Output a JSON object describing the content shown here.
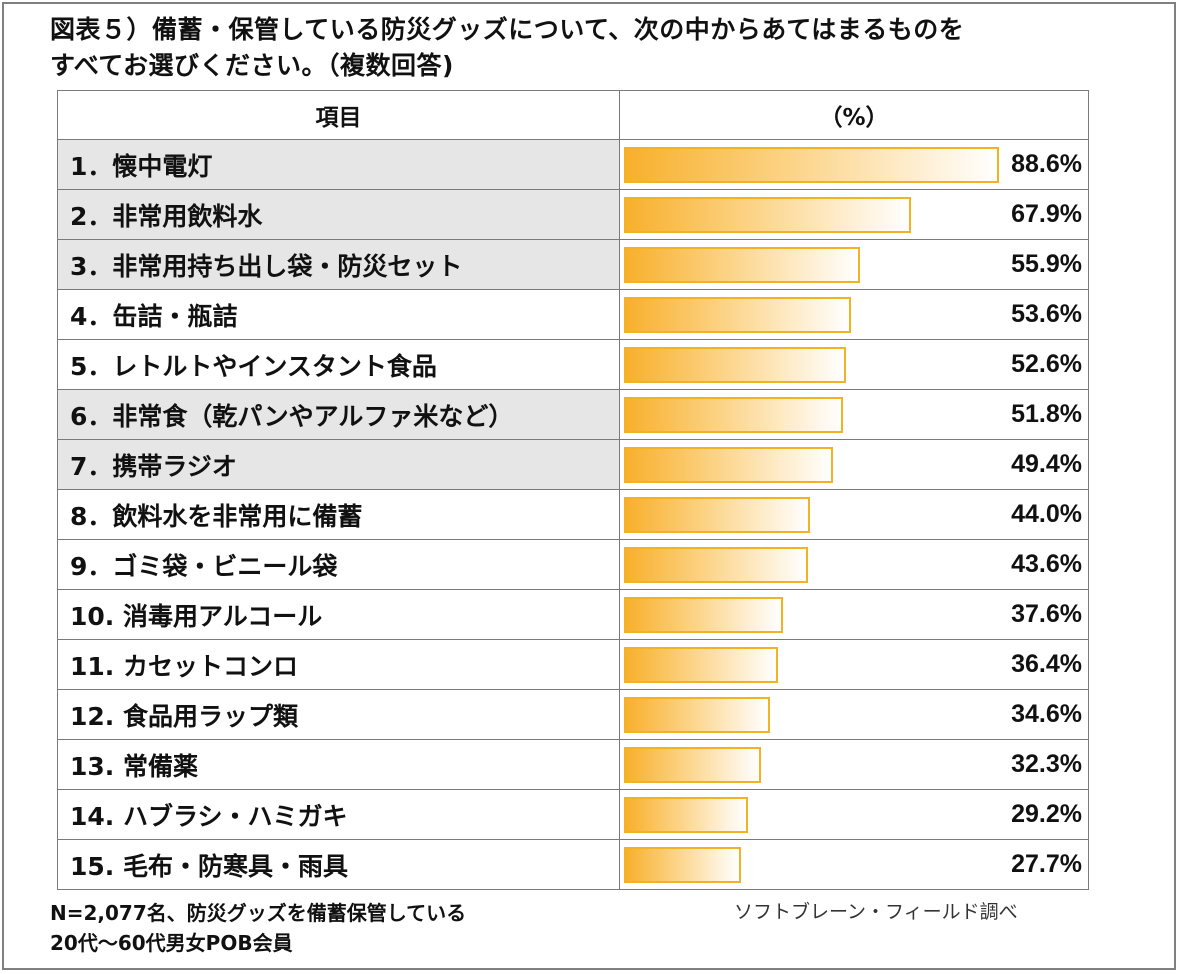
{
  "title": {
    "line1": "図表５）備蓄・保管している防災グッズについて、次の中からあてはまるものを",
    "line2": "すべてお選びください。（複数回答)"
  },
  "table": {
    "header_item": "項目",
    "header_value": "（%）"
  },
  "chart_data": {
    "type": "bar",
    "orientation": "horizontal",
    "categories": [
      "1．懐中電灯",
      "2．非常用飲料水",
      "3．非常用持ち出し袋・防災セット",
      "4．缶詰・瓶詰",
      "5．レトルトやインスタント食品",
      "6．非常食（乾パンやアルファ米など）",
      "7．携帯ラジオ",
      "8．飲料水を非常用に備蓄",
      "9．ゴミ袋・ビニール袋",
      "10. 消毒用アルコール",
      "11. カセットコンロ",
      "12. 食品用ラップ類",
      "13. 常備薬",
      "14. ハブラシ・ハミガキ",
      "15. 毛布・防寒具・雨具"
    ],
    "values": [
      88.6,
      67.9,
      55.9,
      53.6,
      52.6,
      51.8,
      49.4,
      44.0,
      43.6,
      37.6,
      36.4,
      34.6,
      32.3,
      29.2,
      27.7
    ],
    "value_labels": [
      "88.6%",
      "67.9%",
      "55.9%",
      "53.6%",
      "52.6%",
      "51.8%",
      "49.4%",
      "44.0%",
      "43.6%",
      "37.6%",
      "36.4%",
      "34.6%",
      "32.3%",
      "29.2%",
      "27.7%"
    ],
    "highlighted": [
      true,
      true,
      true,
      false,
      false,
      true,
      true,
      false,
      false,
      false,
      false,
      false,
      false,
      false,
      false
    ],
    "xlim": [
      0,
      100
    ],
    "bar_color": "#f8b02c",
    "bar_border_color": "#f3b224",
    "highlight_color": "#e6e6e6"
  },
  "footnote": {
    "line1": "N=2,077名、防災グッズを備蓄保管している",
    "line2": "20代～60代男女POB会員"
  },
  "source": "ソフトブレーン・フィールド調べ"
}
